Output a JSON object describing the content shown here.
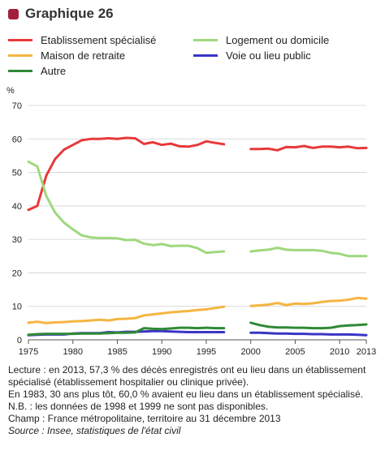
{
  "header": {
    "title": "Graphique 26",
    "marker_color": "#a3203c"
  },
  "chart_data": {
    "type": "line",
    "ylabel": "%",
    "xlim": [
      1975,
      2013
    ],
    "ylim": [
      0,
      70
    ],
    "y_ticks": [
      0,
      10,
      20,
      30,
      40,
      50,
      60,
      70
    ],
    "x_ticks": [
      1975,
      1980,
      1985,
      1990,
      1995,
      2000,
      2005,
      2010,
      2013
    ],
    "grid": "horizontal",
    "legend_position": "top",
    "gap_years": [
      1998,
      1999
    ],
    "series": [
      {
        "name": "Etablissement spécialisé",
        "color": "#e8393a",
        "points": [
          [
            1975,
            38.8
          ],
          [
            1976,
            40.0
          ],
          [
            1977,
            49.0
          ],
          [
            1978,
            54.0
          ],
          [
            1979,
            56.8
          ],
          [
            1980,
            58.2
          ],
          [
            1981,
            59.6
          ],
          [
            1982,
            60.0
          ],
          [
            1983,
            60.0
          ],
          [
            1984,
            60.2
          ],
          [
            1985,
            60.0
          ],
          [
            1986,
            60.3
          ],
          [
            1987,
            60.2
          ],
          [
            1988,
            58.5
          ],
          [
            1989,
            59.0
          ],
          [
            1990,
            58.2
          ],
          [
            1991,
            58.6
          ],
          [
            1992,
            57.8
          ],
          [
            1993,
            57.7
          ],
          [
            1994,
            58.2
          ],
          [
            1995,
            59.3
          ],
          [
            1996,
            58.8
          ],
          [
            1997,
            58.4
          ],
          [
            2000,
            57.0
          ],
          [
            2001,
            57.0
          ],
          [
            2002,
            57.1
          ],
          [
            2003,
            56.6
          ],
          [
            2004,
            57.6
          ],
          [
            2005,
            57.5
          ],
          [
            2006,
            57.9
          ],
          [
            2007,
            57.3
          ],
          [
            2008,
            57.7
          ],
          [
            2009,
            57.7
          ],
          [
            2010,
            57.5
          ],
          [
            2011,
            57.7
          ],
          [
            2012,
            57.2
          ],
          [
            2013,
            57.3
          ]
        ]
      },
      {
        "name": "Logement ou domicile",
        "color": "#9fd87e",
        "points": [
          [
            1975,
            53.2
          ],
          [
            1976,
            51.8
          ],
          [
            1977,
            43.0
          ],
          [
            1978,
            38.0
          ],
          [
            1979,
            35.0
          ],
          [
            1980,
            33.0
          ],
          [
            1981,
            31.2
          ],
          [
            1982,
            30.6
          ],
          [
            1983,
            30.4
          ],
          [
            1984,
            30.4
          ],
          [
            1985,
            30.3
          ],
          [
            1986,
            29.8
          ],
          [
            1987,
            29.9
          ],
          [
            1988,
            28.7
          ],
          [
            1989,
            28.3
          ],
          [
            1990,
            28.6
          ],
          [
            1991,
            28.0
          ],
          [
            1992,
            28.1
          ],
          [
            1993,
            28.1
          ],
          [
            1994,
            27.4
          ],
          [
            1995,
            26.0
          ],
          [
            1996,
            26.2
          ],
          [
            1997,
            26.4
          ],
          [
            2000,
            26.4
          ],
          [
            2001,
            26.7
          ],
          [
            2002,
            26.9
          ],
          [
            2003,
            27.5
          ],
          [
            2004,
            26.9
          ],
          [
            2005,
            26.8
          ],
          [
            2006,
            26.8
          ],
          [
            2007,
            26.8
          ],
          [
            2008,
            26.6
          ],
          [
            2009,
            26.0
          ],
          [
            2010,
            25.7
          ],
          [
            2011,
            25.0
          ],
          [
            2012,
            25.0
          ],
          [
            2013,
            25.0
          ]
        ]
      },
      {
        "name": "Maison de retraite",
        "color": "#f5b541",
        "points": [
          [
            1975,
            5.1
          ],
          [
            1976,
            5.4
          ],
          [
            1977,
            5.0
          ],
          [
            1978,
            5.2
          ],
          [
            1979,
            5.3
          ],
          [
            1980,
            5.5
          ],
          [
            1981,
            5.6
          ],
          [
            1982,
            5.8
          ],
          [
            1983,
            6.0
          ],
          [
            1984,
            5.8
          ],
          [
            1985,
            6.2
          ],
          [
            1986,
            6.3
          ],
          [
            1987,
            6.5
          ],
          [
            1988,
            7.3
          ],
          [
            1989,
            7.6
          ],
          [
            1990,
            7.9
          ],
          [
            1991,
            8.2
          ],
          [
            1992,
            8.4
          ],
          [
            1993,
            8.6
          ],
          [
            1994,
            8.9
          ],
          [
            1995,
            9.1
          ],
          [
            1996,
            9.5
          ],
          [
            1997,
            9.9
          ],
          [
            2000,
            10.1
          ],
          [
            2001,
            10.3
          ],
          [
            2002,
            10.5
          ],
          [
            2003,
            11.0
          ],
          [
            2004,
            10.4
          ],
          [
            2005,
            10.8
          ],
          [
            2006,
            10.7
          ],
          [
            2007,
            10.9
          ],
          [
            2008,
            11.3
          ],
          [
            2009,
            11.6
          ],
          [
            2010,
            11.7
          ],
          [
            2011,
            12.0
          ],
          [
            2012,
            12.5
          ],
          [
            2013,
            12.3
          ]
        ]
      },
      {
        "name": "Voie ou lieu public",
        "color": "#3a35c4",
        "points": [
          [
            1975,
            1.4
          ],
          [
            1976,
            1.5
          ],
          [
            1977,
            1.6
          ],
          [
            1978,
            1.6
          ],
          [
            1979,
            1.6
          ],
          [
            1980,
            1.9
          ],
          [
            1981,
            2.0
          ],
          [
            1982,
            2.0
          ],
          [
            1983,
            2.0
          ],
          [
            1984,
            2.3
          ],
          [
            1985,
            2.2
          ],
          [
            1986,
            2.4
          ],
          [
            1987,
            2.4
          ],
          [
            1988,
            2.5
          ],
          [
            1989,
            2.6
          ],
          [
            1990,
            2.6
          ],
          [
            1991,
            2.5
          ],
          [
            1992,
            2.4
          ],
          [
            1993,
            2.3
          ],
          [
            1994,
            2.3
          ],
          [
            1995,
            2.3
          ],
          [
            1996,
            2.3
          ],
          [
            1997,
            2.3
          ],
          [
            2000,
            2.1
          ],
          [
            2001,
            2.1
          ],
          [
            2002,
            2.0
          ],
          [
            2003,
            1.9
          ],
          [
            2004,
            1.9
          ],
          [
            2005,
            1.8
          ],
          [
            2006,
            1.8
          ],
          [
            2007,
            1.7
          ],
          [
            2008,
            1.7
          ],
          [
            2009,
            1.6
          ],
          [
            2010,
            1.6
          ],
          [
            2011,
            1.6
          ],
          [
            2012,
            1.5
          ],
          [
            2013,
            1.4
          ]
        ]
      },
      {
        "name": "Autre",
        "color": "#2f8a35",
        "points": [
          [
            1975,
            1.5
          ],
          [
            1976,
            1.7
          ],
          [
            1977,
            1.8
          ],
          [
            1978,
            1.8
          ],
          [
            1979,
            1.8
          ],
          [
            1980,
            1.8
          ],
          [
            1981,
            1.9
          ],
          [
            1982,
            1.9
          ],
          [
            1983,
            1.9
          ],
          [
            1984,
            2.0
          ],
          [
            1985,
            2.1
          ],
          [
            1986,
            2.1
          ],
          [
            1987,
            2.2
          ],
          [
            1988,
            3.5
          ],
          [
            1989,
            3.3
          ],
          [
            1990,
            3.2
          ],
          [
            1991,
            3.4
          ],
          [
            1992,
            3.6
          ],
          [
            1993,
            3.6
          ],
          [
            1994,
            3.5
          ],
          [
            1995,
            3.6
          ],
          [
            1996,
            3.5
          ],
          [
            1997,
            3.5
          ],
          [
            2000,
            5.1
          ],
          [
            2001,
            4.4
          ],
          [
            2002,
            3.9
          ],
          [
            2003,
            3.7
          ],
          [
            2004,
            3.7
          ],
          [
            2005,
            3.6
          ],
          [
            2006,
            3.6
          ],
          [
            2007,
            3.5
          ],
          [
            2008,
            3.5
          ],
          [
            2009,
            3.6
          ],
          [
            2010,
            4.1
          ],
          [
            2011,
            4.3
          ],
          [
            2012,
            4.4
          ],
          [
            2013,
            4.6
          ]
        ]
      }
    ]
  },
  "notes": {
    "line1": "Lecture : en 2013, 57,3 % des décès enregistrés ont eu lieu dans un établissement spécialisé (établissement hospitalier ou clinique privée).",
    "line2": "En 1983, 30 ans plus tôt, 60,0 % avaient eu lieu dans un établissement spécialisé.",
    "line3": "N.B. : les données de 1998 et 1999 ne sont pas disponibles.",
    "line4": "Champ : France métropolitaine, territoire au 31 décembre 2013",
    "source": "Source : Insee, statistiques de l'état civil"
  }
}
